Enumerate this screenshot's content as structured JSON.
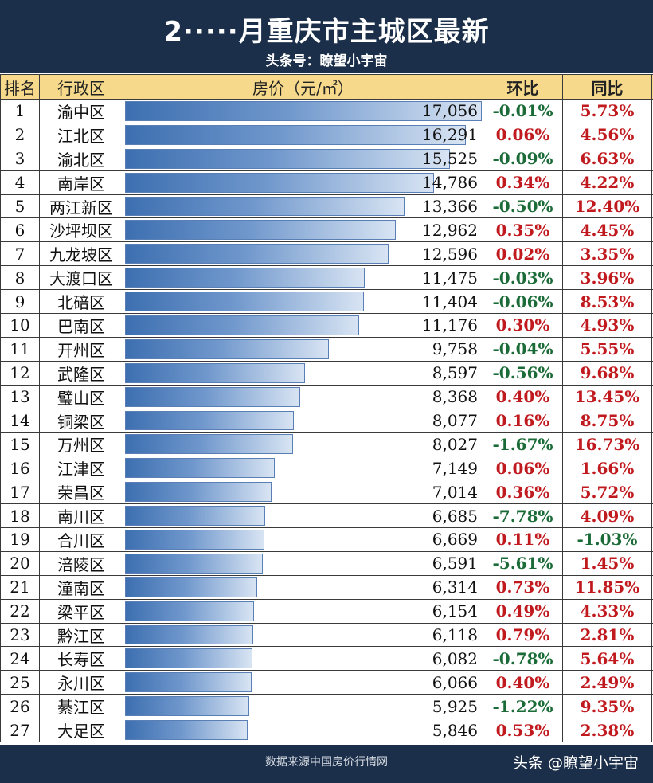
{
  "header": {
    "title": "2·····月重庆市主城区最新",
    "subtitle": "头条号：瞭望小宇宙"
  },
  "columns": {
    "rank": "排名",
    "district": "行政区",
    "price": "房价（元/㎡）",
    "mom": "环比",
    "yoy": "同比"
  },
  "chart_data": {
    "type": "table",
    "max_value": 17056,
    "rows": [
      {
        "rank": "1",
        "district": "渝中区",
        "price": 17056,
        "price_label": "17,056",
        "mom": "-0.01%",
        "yoy": "5.73%"
      },
      {
        "rank": "2",
        "district": "江北区",
        "price": 16291,
        "price_label": "16,291",
        "mom": "0.06%",
        "yoy": "4.56%"
      },
      {
        "rank": "3",
        "district": "渝北区",
        "price": 15525,
        "price_label": "15,525",
        "mom": "-0.09%",
        "yoy": "6.63%"
      },
      {
        "rank": "4",
        "district": "南岸区",
        "price": 14786,
        "price_label": "14,786",
        "mom": "0.34%",
        "yoy": "4.22%"
      },
      {
        "rank": "5",
        "district": "两江新区",
        "price": 13366,
        "price_label": "13,366",
        "mom": "-0.50%",
        "yoy": "12.40%"
      },
      {
        "rank": "6",
        "district": "沙坪坝区",
        "price": 12962,
        "price_label": "12,962",
        "mom": "0.35%",
        "yoy": "4.45%"
      },
      {
        "rank": "7",
        "district": "九龙坡区",
        "price": 12596,
        "price_label": "12,596",
        "mom": "0.02%",
        "yoy": "3.35%"
      },
      {
        "rank": "8",
        "district": "大渡口区",
        "price": 11475,
        "price_label": "11,475",
        "mom": "-0.03%",
        "yoy": "3.96%"
      },
      {
        "rank": "9",
        "district": "北碚区",
        "price": 11404,
        "price_label": "11,404",
        "mom": "-0.06%",
        "yoy": "8.53%"
      },
      {
        "rank": "10",
        "district": "巴南区",
        "price": 11176,
        "price_label": "11,176",
        "mom": "0.30%",
        "yoy": "4.93%"
      },
      {
        "rank": "11",
        "district": "开州区",
        "price": 9758,
        "price_label": "9,758",
        "mom": "-0.04%",
        "yoy": "5.55%"
      },
      {
        "rank": "12",
        "district": "武隆区",
        "price": 8597,
        "price_label": "8,597",
        "mom": "-0.56%",
        "yoy": "9.68%"
      },
      {
        "rank": "13",
        "district": "璧山区",
        "price": 8368,
        "price_label": "8,368",
        "mom": "0.40%",
        "yoy": "13.45%"
      },
      {
        "rank": "14",
        "district": "铜梁区",
        "price": 8077,
        "price_label": "8,077",
        "mom": "0.16%",
        "yoy": "8.75%"
      },
      {
        "rank": "15",
        "district": "万州区",
        "price": 8027,
        "price_label": "8,027",
        "mom": "-1.67%",
        "yoy": "16.73%"
      },
      {
        "rank": "16",
        "district": "江津区",
        "price": 7149,
        "price_label": "7,149",
        "mom": "0.06%",
        "yoy": "1.66%"
      },
      {
        "rank": "17",
        "district": "荣昌区",
        "price": 7014,
        "price_label": "7,014",
        "mom": "0.36%",
        "yoy": "5.72%"
      },
      {
        "rank": "18",
        "district": "南川区",
        "price": 6685,
        "price_label": "6,685",
        "mom": "-7.78%",
        "yoy": "4.09%"
      },
      {
        "rank": "19",
        "district": "合川区",
        "price": 6669,
        "price_label": "6,669",
        "mom": "0.11%",
        "yoy": "-1.03%"
      },
      {
        "rank": "20",
        "district": "涪陵区",
        "price": 6591,
        "price_label": "6,591",
        "mom": "-5.61%",
        "yoy": "1.45%"
      },
      {
        "rank": "21",
        "district": "潼南区",
        "price": 6314,
        "price_label": "6,314",
        "mom": "0.73%",
        "yoy": "11.85%"
      },
      {
        "rank": "22",
        "district": "梁平区",
        "price": 6154,
        "price_label": "6,154",
        "mom": "0.49%",
        "yoy": "4.33%"
      },
      {
        "rank": "23",
        "district": "黔江区",
        "price": 6118,
        "price_label": "6,118",
        "mom": "0.79%",
        "yoy": "2.81%"
      },
      {
        "rank": "24",
        "district": "长寿区",
        "price": 6082,
        "price_label": "6,082",
        "mom": "-0.78%",
        "yoy": "5.64%"
      },
      {
        "rank": "25",
        "district": "永川区",
        "price": 6066,
        "price_label": "6,066",
        "mom": "0.40%",
        "yoy": "2.49%"
      },
      {
        "rank": "26",
        "district": "綦江区",
        "price": 5925,
        "price_label": "5,925",
        "mom": "-1.22%",
        "yoy": "9.35%"
      },
      {
        "rank": "27",
        "district": "大足区",
        "price": 5846,
        "price_label": "5,846",
        "mom": "0.53%",
        "yoy": "2.38%"
      }
    ]
  },
  "colors": {
    "header_bg": "#1c2f4a",
    "column_header_bg": "#f6d98a",
    "positive": "#c0191e",
    "negative": "#1a6b37",
    "bar": "#4a7bbf"
  },
  "footer": {
    "source": "数据来源中国房价行情网",
    "watermark": "头条 @瞭望小宇宙"
  }
}
